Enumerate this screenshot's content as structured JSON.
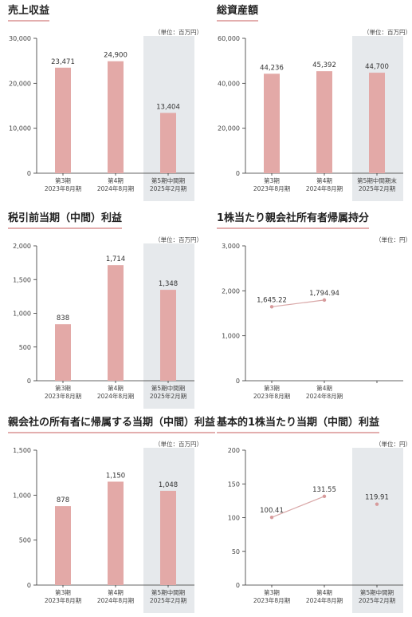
{
  "colors": {
    "bar": "#e3a9a7",
    "line": "#d9a8a8",
    "point": "#d79b9c",
    "axis": "#333333",
    "highlight": "#e6e9ec",
    "title_underline": "#e3aeae"
  },
  "panels": [
    {
      "title": "売上収益",
      "unit": "（単位：百万円）"
    },
    {
      "title": "総資産額",
      "unit": "（単位：百万円）"
    },
    {
      "title": "税引前当期（中間）利益",
      "unit": "（単位：百万円）"
    },
    {
      "title": "1株当たり親会社所有者帰属持分",
      "unit": "（単位：円）"
    },
    {
      "title": "親会社の所有者に帰属する当期（中間）利益",
      "unit": "（単位：百万円）"
    },
    {
      "title": "基本的1株当たり当期（中間）利益",
      "unit": "（単位：円）"
    }
  ],
  "chart_data": [
    {
      "type": "bar",
      "title": "売上収益",
      "unit": "（単位：百万円）",
      "categories": [
        [
          "第3期",
          "2023年8月期"
        ],
        [
          "第4期",
          "2024年8月期"
        ],
        [
          "第5期中間期",
          "2025年2月期"
        ]
      ],
      "values": [
        23471,
        24900,
        13404
      ],
      "value_labels": [
        "23,471",
        "24,900",
        "13,404"
      ],
      "ylim": [
        0,
        30000
      ],
      "yticks": [
        0,
        10000,
        20000,
        30000
      ],
      "ytick_labels": [
        "0",
        "10,000",
        "20,000",
        "30,000"
      ],
      "highlight_index": 2
    },
    {
      "type": "bar",
      "title": "総資産額",
      "unit": "（単位：百万円）",
      "categories": [
        [
          "第3期",
          "2023年8月期"
        ],
        [
          "第4期",
          "2024年8月期"
        ],
        [
          "第5期中間期末",
          "2025年2月期"
        ]
      ],
      "values": [
        44236,
        45392,
        44700
      ],
      "value_labels": [
        "44,236",
        "45,392",
        "44,700"
      ],
      "ylim": [
        0,
        60000
      ],
      "yticks": [
        0,
        20000,
        40000,
        60000
      ],
      "ytick_labels": [
        "0",
        "20,000",
        "40,000",
        "60,000"
      ],
      "highlight_index": 2
    },
    {
      "type": "bar",
      "title": "税引前当期（中間）利益",
      "unit": "（単位：百万円）",
      "categories": [
        [
          "第3期",
          "2023年8月期"
        ],
        [
          "第4期",
          "2024年8月期"
        ],
        [
          "第5期中間期",
          "2025年2月期"
        ]
      ],
      "values": [
        838,
        1714,
        1348
      ],
      "value_labels": [
        "838",
        "1,714",
        "1,348"
      ],
      "ylim": [
        0,
        2000
      ],
      "yticks": [
        0,
        500,
        1000,
        1500,
        2000
      ],
      "ytick_labels": [
        "0",
        "500",
        "1,000",
        "1,500",
        "2,000"
      ],
      "highlight_index": 2
    },
    {
      "type": "line",
      "title": "1株当たり親会社所有者帰属持分",
      "unit": "（単位：円）",
      "categories": [
        [
          "第3期",
          "2023年8月期"
        ],
        [
          "第4期",
          "2024年8月期"
        ]
      ],
      "values": [
        1645.22,
        1794.94
      ],
      "value_labels": [
        "1,645.22",
        "1,794.94"
      ],
      "ylim": [
        0,
        3000
      ],
      "yticks": [
        0,
        1000,
        2000,
        3000
      ],
      "ytick_labels": [
        "0",
        "1,000",
        "2,000",
        "3,000"
      ],
      "connect_to": 1
    },
    {
      "type": "bar",
      "title": "親会社の所有者に帰属する当期（中間）利益",
      "unit": "（単位：百万円）",
      "categories": [
        [
          "第3期",
          "2023年8月期"
        ],
        [
          "第4期",
          "2024年8月期"
        ],
        [
          "第5期中間期",
          "2025年2月期"
        ]
      ],
      "values": [
        878,
        1150,
        1048
      ],
      "value_labels": [
        "878",
        "1,150",
        "1,048"
      ],
      "ylim": [
        0,
        1500
      ],
      "yticks": [
        0,
        500,
        1000,
        1500
      ],
      "ytick_labels": [
        "0",
        "500",
        "1,000",
        "1,500"
      ],
      "highlight_index": 2
    },
    {
      "type": "line",
      "title": "基本的1株当たり当期（中間）利益",
      "unit": "（単位：円）",
      "categories": [
        [
          "第3期",
          "2023年8月期"
        ],
        [
          "第4期",
          "2024年8月期"
        ],
        [
          "第5期中間期",
          "2025年2月期"
        ]
      ],
      "values": [
        100.41,
        131.55,
        119.91
      ],
      "value_labels": [
        "100.41",
        "131.55",
        "119.91"
      ],
      "ylim": [
        0,
        200
      ],
      "yticks": [
        0,
        50,
        100,
        150,
        200
      ],
      "ytick_labels": [
        "0",
        "50",
        "100",
        "150",
        "200"
      ],
      "highlight_index": 2,
      "connect_to": 1
    }
  ]
}
